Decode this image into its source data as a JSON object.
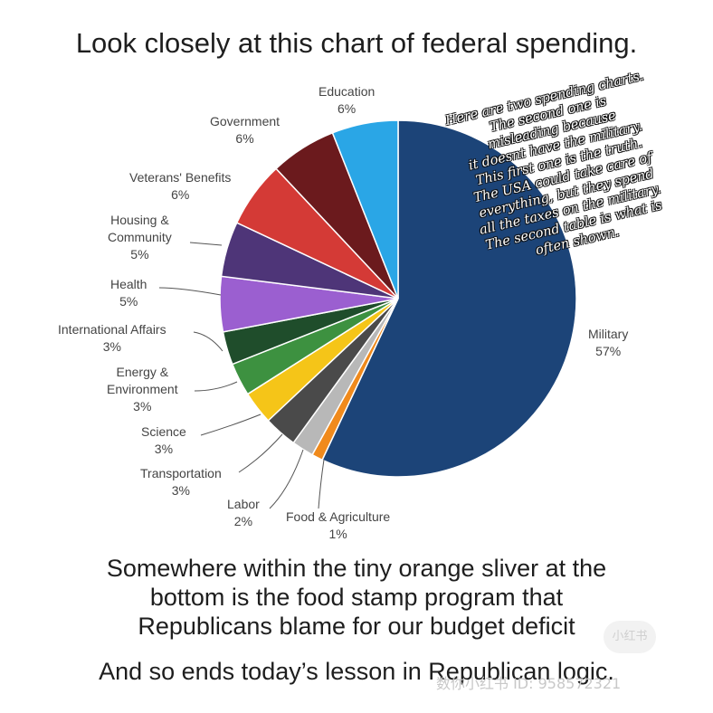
{
  "title": "Look closely at this chart of federal spending.",
  "chart_data": {
    "type": "pie",
    "title": "Look closely at this chart of federal spending.",
    "slices": [
      {
        "name": "Military",
        "label": "Military",
        "pct": "57%",
        "value": 57,
        "color": "#1c4478"
      },
      {
        "name": "Food & Agriculture",
        "label": "Food & Agriculture",
        "pct": "1%",
        "value": 1,
        "color": "#f08a1c"
      },
      {
        "name": "Labor",
        "label": "Labor",
        "pct": "2%",
        "value": 2,
        "color": "#b8b8b8"
      },
      {
        "name": "Transportation",
        "label": "Transportation",
        "pct": "3%",
        "value": 3,
        "color": "#4a4a4a"
      },
      {
        "name": "Science",
        "label": "Science",
        "pct": "3%",
        "value": 3,
        "color": "#f5c518"
      },
      {
        "name": "Energy & Environment",
        "label": "Energy & Environment",
        "pct": "3%",
        "value": 3,
        "color": "#3d9140"
      },
      {
        "name": "International Affairs",
        "label": "International Affairs",
        "pct": "3%",
        "value": 3,
        "color": "#1f4d2b"
      },
      {
        "name": "Health",
        "label": "Health",
        "pct": "5%",
        "value": 5,
        "color": "#9b5fd0"
      },
      {
        "name": "Housing & Community",
        "label": "Housing & Community",
        "pct": "5%",
        "value": 5,
        "color": "#4e3578"
      },
      {
        "name": "Veterans' Benefits",
        "label": "Veterans' Benefits",
        "pct": "6%",
        "value": 6,
        "color": "#d43a36"
      },
      {
        "name": "Government",
        "label": "Government",
        "pct": "6%",
        "value": 6,
        "color": "#6b1a1d"
      },
      {
        "name": "Education",
        "label": "Education",
        "pct": "6%",
        "value": 6,
        "color": "#2aa6e6"
      }
    ]
  },
  "labels": {
    "education": {
      "name": "Education",
      "pct": "6%"
    },
    "government": {
      "name": "Government",
      "pct": "6%"
    },
    "veterans": {
      "name": "Veterans' Benefits",
      "pct": "6%"
    },
    "housing": {
      "line1": "Housing &",
      "line2": "Community",
      "pct": "5%"
    },
    "health": {
      "name": "Health",
      "pct": "5%"
    },
    "international": {
      "name": "International Affairs",
      "pct": "3%"
    },
    "energy": {
      "line1": "Energy &",
      "line2": "Environment",
      "pct": "3%"
    },
    "science": {
      "name": "Science",
      "pct": "3%"
    },
    "transportation": {
      "name": "Transportation",
      "pct": "3%"
    },
    "labor": {
      "name": "Labor",
      "pct": "2%"
    },
    "food": {
      "name": "Food & Agriculture",
      "pct": "1%"
    },
    "military": {
      "name": "Military",
      "pct": "57%"
    }
  },
  "annotation": [
    "Here are two spending charts.",
    "The second one is",
    "misleading because",
    "it doesnt have the military.",
    "This first one is the truth.",
    "The USA could take care of",
    "everything, but they spend",
    "all the taxes on the military.",
    "The second table is what is",
    "often shown."
  ],
  "bottom_text": {
    "line1": "Somewhere within the tiny orange sliver at the",
    "line2": "bottom is the food stamp program that",
    "line3": "Republicans blame for our budget deficit",
    "line4": "And so ends today’s lesson in Republican logic."
  },
  "watermark": {
    "text": "数你小红书 ID: 958572321",
    "badge": "小红书"
  }
}
